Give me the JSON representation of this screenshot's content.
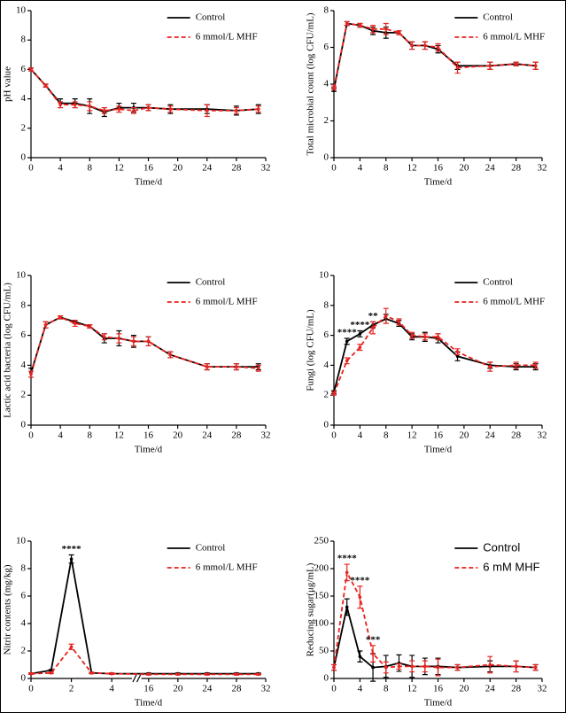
{
  "chart_data": [
    {
      "type": "line",
      "xlabel": "Time/d",
      "ylabel": "pH value",
      "x": [
        0,
        2,
        4,
        6,
        8,
        10,
        12,
        14,
        16,
        19,
        24,
        28,
        31
      ],
      "xlim": [
        0,
        32
      ],
      "xticks": [
        0,
        4,
        8,
        12,
        16,
        20,
        24,
        28,
        32
      ],
      "ylim": [
        0,
        10
      ],
      "yticks": [
        0,
        2,
        4,
        6,
        8,
        10
      ],
      "series": [
        {
          "name": "Control",
          "color": "#000000",
          "line_style": "solid",
          "values": [
            6.0,
            4.9,
            3.7,
            3.7,
            3.5,
            3.1,
            3.4,
            3.4,
            3.4,
            3.3,
            3.3,
            3.2,
            3.3
          ],
          "errors": [
            0.1,
            0.1,
            0.3,
            0.3,
            0.5,
            0.3,
            0.3,
            0.3,
            0.2,
            0.3,
            0.3,
            0.3,
            0.3
          ]
        },
        {
          "name": "6 mmol/L MHF",
          "color": "#e8231f",
          "line_style": "dashed",
          "values": [
            6.0,
            4.9,
            3.6,
            3.6,
            3.5,
            3.2,
            3.3,
            3.2,
            3.4,
            3.3,
            3.2,
            3.2,
            3.3
          ],
          "errors": [
            0.1,
            0.1,
            0.2,
            0.2,
            0.3,
            0.2,
            0.2,
            0.2,
            0.2,
            0.2,
            0.4,
            0.2,
            0.2
          ]
        }
      ],
      "legend": "upper right"
    },
    {
      "type": "line",
      "xlabel": "Time/d",
      "ylabel": "Total microbial count (log CFU/mL)",
      "x": [
        0,
        2,
        4,
        6,
        8,
        10,
        12,
        14,
        16,
        19,
        24,
        28,
        31
      ],
      "xlim": [
        0,
        32
      ],
      "xticks": [
        0,
        4,
        8,
        12,
        16,
        20,
        24,
        28,
        32
      ],
      "ylim": [
        0,
        8
      ],
      "yticks": [
        0,
        2,
        4,
        6,
        8
      ],
      "series": [
        {
          "name": "Control",
          "color": "#000000",
          "line_style": "solid",
          "values": [
            3.7,
            7.3,
            7.2,
            6.9,
            6.8,
            6.8,
            6.1,
            6.1,
            5.9,
            5.0,
            5.0,
            5.1,
            5.0
          ],
          "errors": [
            0.1,
            0.1,
            0.1,
            0.2,
            0.3,
            0.1,
            0.2,
            0.2,
            0.2,
            0.2,
            0.2,
            0.1,
            0.2
          ]
        },
        {
          "name": "6 mmol/L MHF",
          "color": "#e8231f",
          "line_style": "dashed",
          "values": [
            3.8,
            7.3,
            7.2,
            7.0,
            7.0,
            6.8,
            6.1,
            6.1,
            6.0,
            4.9,
            5.0,
            5.1,
            5.0
          ],
          "errors": [
            0.1,
            0.1,
            0.1,
            0.2,
            0.3,
            0.1,
            0.2,
            0.2,
            0.2,
            0.3,
            0.2,
            0.1,
            0.2
          ]
        }
      ],
      "legend": "upper right"
    },
    {
      "type": "line",
      "xlabel": "Time/d",
      "ylabel": "Lactic acid bacteria (log CFU/mL)",
      "x": [
        0,
        2,
        4,
        6,
        8,
        10,
        12,
        14,
        16,
        19,
        24,
        28,
        31
      ],
      "xlim": [
        0,
        32
      ],
      "xticks": [
        0,
        4,
        8,
        12,
        16,
        20,
        24,
        28,
        32
      ],
      "ylim": [
        0,
        10
      ],
      "yticks": [
        0,
        2,
        4,
        6,
        8,
        10
      ],
      "series": [
        {
          "name": "Control",
          "color": "#000000",
          "line_style": "solid",
          "values": [
            3.5,
            6.7,
            7.2,
            6.9,
            6.6,
            5.8,
            5.8,
            5.6,
            5.6,
            4.7,
            3.9,
            3.9,
            3.9
          ],
          "errors": [
            0.3,
            0.2,
            0.1,
            0.1,
            0.1,
            0.3,
            0.5,
            0.4,
            0.3,
            0.2,
            0.2,
            0.2,
            0.2
          ]
        },
        {
          "name": "6 mmol/L MHF",
          "color": "#e8231f",
          "line_style": "dashed",
          "values": [
            3.4,
            6.7,
            7.2,
            6.8,
            6.6,
            5.9,
            5.8,
            5.6,
            5.6,
            4.7,
            3.9,
            3.9,
            3.8
          ],
          "errors": [
            0.2,
            0.2,
            0.1,
            0.2,
            0.1,
            0.2,
            0.3,
            0.3,
            0.3,
            0.2,
            0.2,
            0.2,
            0.2
          ]
        }
      ],
      "legend": "upper right"
    },
    {
      "type": "line",
      "xlabel": "Time/d",
      "ylabel": "Fungi (log CFU/mL)",
      "x": [
        0,
        2,
        4,
        6,
        8,
        10,
        12,
        14,
        16,
        19,
        24,
        28,
        31
      ],
      "xlim": [
        0,
        32
      ],
      "xticks": [
        0,
        4,
        8,
        12,
        16,
        20,
        24,
        28,
        32
      ],
      "ylim": [
        0,
        10
      ],
      "yticks": [
        0,
        2,
        4,
        6,
        8,
        10
      ],
      "series": [
        {
          "name": "Control",
          "color": "#000000",
          "line_style": "solid",
          "values": [
            2.2,
            5.6,
            6.1,
            6.7,
            7.1,
            6.8,
            5.9,
            5.9,
            5.8,
            4.6,
            4.0,
            3.9,
            3.9
          ],
          "errors": [
            0.1,
            0.2,
            0.2,
            0.2,
            0.3,
            0.2,
            0.2,
            0.3,
            0.3,
            0.3,
            0.2,
            0.2,
            0.2
          ]
        },
        {
          "name": "6 mmol/L MHF",
          "color": "#e8231f",
          "line_style": "dashed",
          "values": [
            2.1,
            4.3,
            5.2,
            6.5,
            7.3,
            6.9,
            6.0,
            5.9,
            5.9,
            4.9,
            3.9,
            4.0,
            4.0
          ],
          "errors": [
            0.1,
            0.2,
            0.2,
            0.4,
            0.5,
            0.2,
            0.2,
            0.2,
            0.2,
            0.2,
            0.3,
            0.2,
            0.2
          ]
        }
      ],
      "annotations": [
        {
          "text": "****",
          "x": 2
        },
        {
          "text": "****",
          "x": 4
        },
        {
          "text": "**",
          "x": 6
        }
      ],
      "legend": "upper right"
    },
    {
      "type": "line",
      "xlabel": "Time/d",
      "ylabel": "Nitrir contents (mg/kg)",
      "x": [
        0,
        1,
        2,
        3,
        4,
        16,
        20,
        24,
        28,
        31
      ],
      "xlim": [
        0,
        32
      ],
      "xbreak": [
        5,
        15
      ],
      "xticks": [
        0,
        2,
        4,
        16,
        20,
        24,
        28,
        32
      ],
      "ylim": [
        0,
        10
      ],
      "yticks": [
        0,
        2,
        4,
        6,
        8,
        10
      ],
      "series": [
        {
          "name": "Control",
          "color": "#000000",
          "line_style": "solid",
          "values": [
            0.35,
            0.6,
            8.7,
            0.4,
            0.35,
            0.35,
            0.35,
            0.35,
            0.35,
            0.35
          ],
          "errors": [
            0.05,
            0.05,
            0.3,
            0.05,
            0.05,
            0.05,
            0.05,
            0.05,
            0.05,
            0.05
          ]
        },
        {
          "name": "6 mmol/L MHF",
          "color": "#e8231f",
          "line_style": "dashed",
          "values": [
            0.35,
            0.4,
            2.3,
            0.4,
            0.35,
            0.3,
            0.3,
            0.3,
            0.3,
            0.3
          ],
          "errors": [
            0.05,
            0.05,
            0.2,
            0.05,
            0.05,
            0.05,
            0.05,
            0.05,
            0.05,
            0.05
          ]
        }
      ],
      "annotations": [
        {
          "text": "****",
          "x": 2
        }
      ],
      "legend": "upper right"
    },
    {
      "type": "line",
      "xlabel": "Time/d",
      "ylabel": "Reducing sugar(μg/mL)",
      "x": [
        0,
        2,
        4,
        6,
        8,
        10,
        12,
        14,
        16,
        19,
        24,
        28,
        31
      ],
      "xlim": [
        0,
        32
      ],
      "xticks": [
        0,
        4,
        8,
        12,
        16,
        20,
        24,
        28,
        32
      ],
      "ylim": [
        0,
        250
      ],
      "yticks": [
        0,
        50,
        100,
        150,
        200,
        250
      ],
      "series": [
        {
          "name": "Control",
          "color": "#000000",
          "line_style": "solid",
          "values": [
            20,
            130,
            40,
            20,
            22,
            28,
            22,
            22,
            22,
            20,
            22,
            22,
            20
          ],
          "errors": [
            5,
            15,
            10,
            25,
            20,
            15,
            20,
            15,
            15,
            5,
            10,
            10,
            5
          ]
        },
        {
          "name": "6 mM MHF",
          "color": "#e8231f",
          "line_style": "dashed",
          "values": [
            20,
            193,
            148,
            45,
            20,
            22,
            22,
            22,
            20,
            20,
            25,
            22,
            20
          ],
          "errors": [
            5,
            15,
            20,
            15,
            10,
            5,
            10,
            10,
            15,
            5,
            15,
            10,
            5
          ]
        }
      ],
      "annotations": [
        {
          "text": "****",
          "x": 2
        },
        {
          "text": "****",
          "x": 4
        },
        {
          "text": "***",
          "x": 6
        }
      ],
      "legend": "upper right"
    }
  ]
}
